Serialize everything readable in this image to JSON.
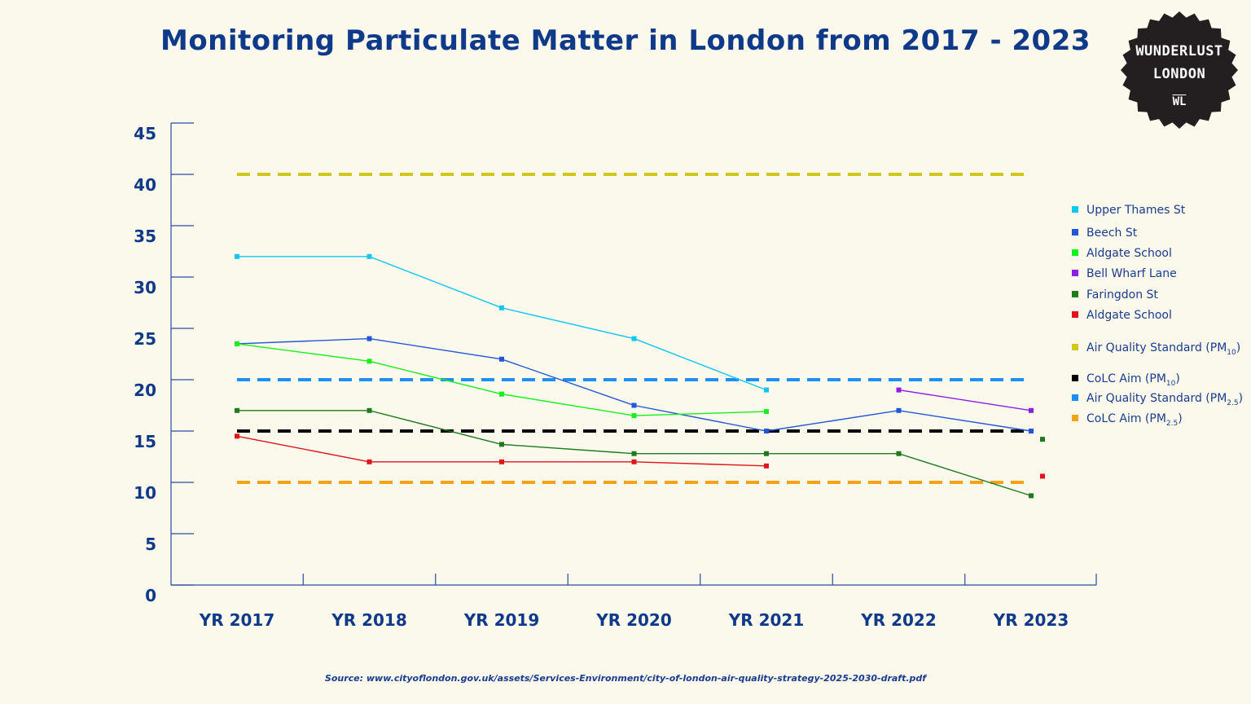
{
  "title": "Monitoring Particulate Matter in London from 2017 - 2023",
  "badge": {
    "line1": "WUNDERLUST",
    "line2": "LONDON",
    "line3": "WL"
  },
  "source": "Source: www.cityoflondon.gov.uk/assets/Services-Environment/city-of-london-air-quality-strategy-2025-2030-draft.pdf",
  "legend": {
    "items": [
      {
        "label": "Upper Thames St",
        "color": "#12c6f2"
      },
      {
        "label": "Beech St",
        "color": "#2157d6"
      },
      {
        "label": "Aldgate School",
        "color": "#17f01a"
      },
      {
        "label": "Bell Wharf Lane",
        "color": "#8e1ee6"
      },
      {
        "label": "Faringdon St",
        "color": "#1f7a1f"
      },
      {
        "label": "Aldgate School",
        "color": "#e0151b"
      }
    ],
    "ref_items": [
      {
        "main": "Air Quality Standard (PM",
        "sub": "10",
        "tail": ")",
        "color": "#cfc81a"
      },
      {
        "main": "CoLC Aim (PM",
        "sub": "10",
        "tail": ")",
        "color": "#000000"
      },
      {
        "main": "Air Quality Standard (PM",
        "sub": "2.5",
        "tail": ")",
        "color": "#1e90f5"
      },
      {
        "main": "CoLC Aim (PM",
        "sub": "2.5",
        "tail": ")",
        "color": "#f5a216"
      }
    ]
  },
  "chart_data": {
    "type": "line",
    "title": "Monitoring Particulate Matter in London from 2017 - 2023",
    "categories": [
      "YR 2017",
      "YR 2018",
      "YR 2019",
      "YR 2020",
      "YR 2021",
      "YR 2022",
      "YR 2023"
    ],
    "ylim": [
      0,
      45
    ],
    "yticks": [
      0,
      5,
      10,
      15,
      20,
      25,
      30,
      35,
      40,
      45
    ],
    "grid": false,
    "legend_position": "right",
    "series": [
      {
        "name": "Upper Thames St",
        "color": "#12c6f2",
        "values": [
          32,
          32,
          27,
          24,
          19,
          null,
          null
        ]
      },
      {
        "name": "Beech St",
        "color": "#2157d6",
        "values": [
          23.5,
          24,
          22,
          17.5,
          15,
          17,
          15
        ]
      },
      {
        "name": "Aldgate School",
        "color": "#17f01a",
        "values": [
          23.5,
          21.8,
          18.6,
          16.5,
          16.9,
          null,
          null
        ]
      },
      {
        "name": "Bell Wharf Lane",
        "color": "#8e1ee6",
        "values": [
          null,
          null,
          null,
          null,
          null,
          19,
          17
        ]
      },
      {
        "name": "Faringdon St",
        "color": "#1f7a1f",
        "values": [
          17,
          17,
          13.7,
          12.8,
          12.8,
          12.8,
          8.7
        ]
      },
      {
        "name": "Aldgate School",
        "color": "#e0151b",
        "values": [
          14.5,
          12,
          12,
          12,
          11.6,
          null,
          null
        ]
      }
    ],
    "reference_lines": [
      {
        "name": "Air Quality Standard (PM10)",
        "value": 40,
        "color": "#cfc81a"
      },
      {
        "name": "CoLC Aim (PM10)",
        "value": 15,
        "color": "#000000"
      },
      {
        "name": "Air Quality Standard (PM2.5)",
        "value": 20,
        "color": "#1e90f5"
      },
      {
        "name": "CoLC Aim (PM2.5)",
        "value": 10,
        "color": "#f5a216"
      }
    ],
    "extra_points": [
      {
        "series": "Faringdon St",
        "category": "YR 2023",
        "value": 14.2,
        "color": "#1f7a1f"
      },
      {
        "series": "Aldgate School",
        "category": "YR 2023",
        "value": 10.6,
        "color": "#e0151b"
      }
    ]
  }
}
